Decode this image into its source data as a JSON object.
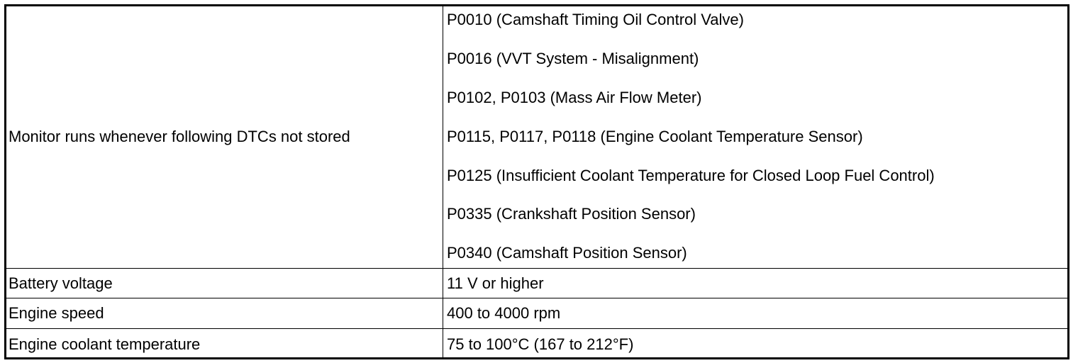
{
  "table": {
    "rows": [
      [
        "Monitor runs whenever following DTCs not stored",
        [
          "P0010 (Camshaft Timing Oil Control Valve)",
          "P0016 (VVT System - Misalignment)",
          "P0102, P0103 (Mass Air Flow Meter)",
          "P0115, P0117, P0118 (Engine Coolant Temperature Sensor)",
          "P0125 (Insufficient Coolant Temperature for Closed Loop Fuel Control)",
          "P0335 (Crankshaft Position Sensor)",
          "P0340 (Camshaft Position Sensor)"
        ]
      ],
      [
        "Battery voltage",
        "11 V or higher"
      ],
      [
        "Engine speed",
        "400 to 4000 rpm"
      ],
      [
        "Engine coolant temperature",
        "75 to 100°C (167 to 212°F)"
      ]
    ]
  }
}
